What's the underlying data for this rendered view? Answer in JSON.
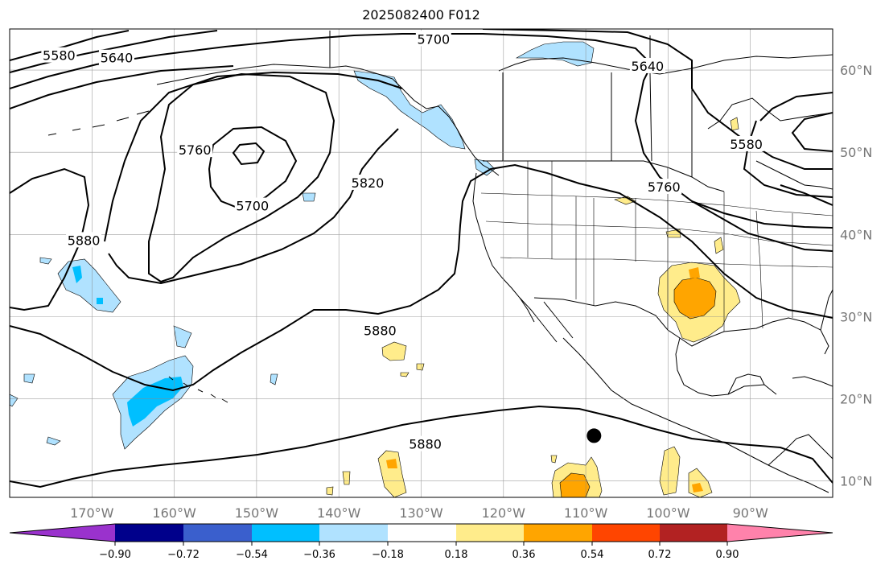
{
  "title": "2025082400 F012",
  "map": {
    "lon_range": [
      -180,
      -80
    ],
    "lat_range": [
      8,
      65
    ],
    "lon_ticks": [
      {
        "value": -170,
        "label": "170°W"
      },
      {
        "value": -160,
        "label": "160°W"
      },
      {
        "value": -150,
        "label": "150°W"
      },
      {
        "value": -140,
        "label": "140°W"
      },
      {
        "value": -130,
        "label": "130°W"
      },
      {
        "value": -120,
        "label": "120°W"
      },
      {
        "value": -110,
        "label": "110°W"
      },
      {
        "value": -100,
        "label": "100°W"
      },
      {
        "value": -90,
        "label": "90°W"
      }
    ],
    "lat_ticks": [
      {
        "value": 60,
        "label": "60°N"
      },
      {
        "value": 50,
        "label": "50°N"
      },
      {
        "value": 40,
        "label": "40°N"
      },
      {
        "value": 30,
        "label": "30°N"
      },
      {
        "value": 20,
        "label": "20°N"
      },
      {
        "value": 10,
        "label": "10°N"
      }
    ],
    "contour_labels": [
      {
        "text": "5580",
        "lon": -174,
        "lat": 61.8
      },
      {
        "text": "5640",
        "lon": -167,
        "lat": 61.5
      },
      {
        "text": "5700",
        "lon": -128.5,
        "lat": 63.8
      },
      {
        "text": "5640",
        "lon": -102.5,
        "lat": 60.5
      },
      {
        "text": "5760",
        "lon": -157.5,
        "lat": 50.3
      },
      {
        "text": "5700",
        "lon": -150.5,
        "lat": 43.5
      },
      {
        "text": "5820",
        "lon": -136.5,
        "lat": 46.3
      },
      {
        "text": "5760",
        "lon": -100.5,
        "lat": 45.8
      },
      {
        "text": "5580",
        "lon": -90.5,
        "lat": 51
      },
      {
        "text": "5880",
        "lon": -171,
        "lat": 39.3
      },
      {
        "text": "5880",
        "lon": -135,
        "lat": 28.3
      },
      {
        "text": "5880",
        "lon": -129.5,
        "lat": 14.5
      }
    ],
    "marker": {
      "lon": -109,
      "lat": 15.5
    }
  },
  "colorbar": {
    "colors": [
      "#9a32cd",
      "#00008b",
      "#3a5fcd",
      "#00bfff",
      "#b0e2ff",
      "#ffffff",
      "#ffec8b",
      "#ffa500",
      "#ff4500",
      "#b22222",
      "#ff82ab"
    ],
    "ticks": [
      "−0.90",
      "−0.72",
      "−0.54",
      "−0.36",
      "−0.18",
      "0.18",
      "0.36",
      "0.54",
      "0.72",
      "0.90"
    ]
  }
}
